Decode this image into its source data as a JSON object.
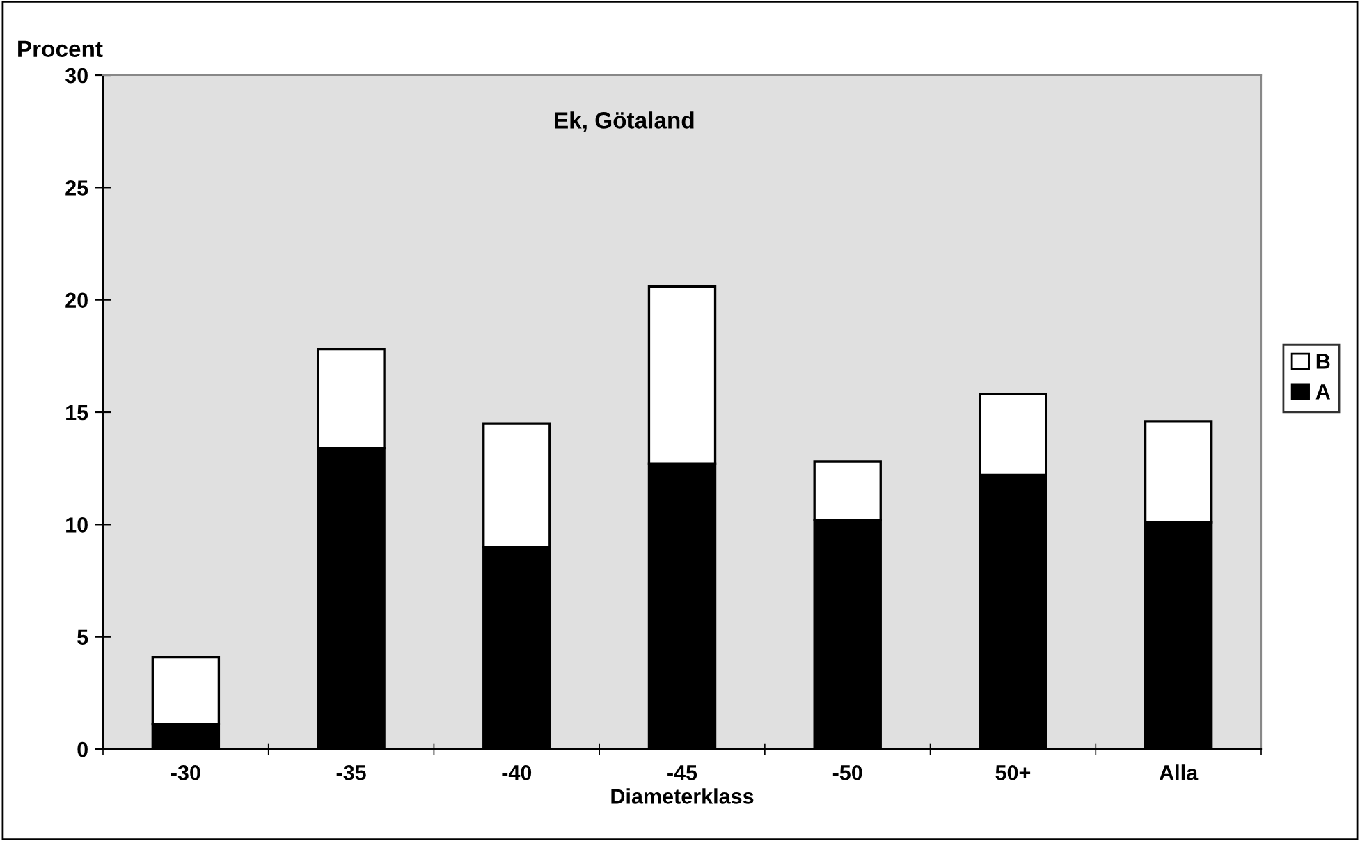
{
  "chart_data": {
    "type": "bar",
    "stacked": true,
    "title": "Ek, Götaland",
    "xlabel": "Diameterklass",
    "ylabel": "Procent",
    "categories": [
      "-30",
      "-35",
      "-40",
      "-45",
      "-50",
      "50+",
      "Alla"
    ],
    "series": [
      {
        "name": "A",
        "color": "#000000",
        "values": [
          1.1,
          13.4,
          9.0,
          12.7,
          10.2,
          12.2,
          10.1
        ]
      },
      {
        "name": "B",
        "color": "#ffffff",
        "values": [
          3.0,
          4.4,
          5.5,
          7.9,
          2.6,
          3.6,
          4.5
        ]
      }
    ],
    "ylim": [
      0,
      30
    ],
    "yticks": [
      0,
      5,
      10,
      15,
      20,
      25,
      30
    ],
    "grid": false,
    "legend": "right"
  }
}
